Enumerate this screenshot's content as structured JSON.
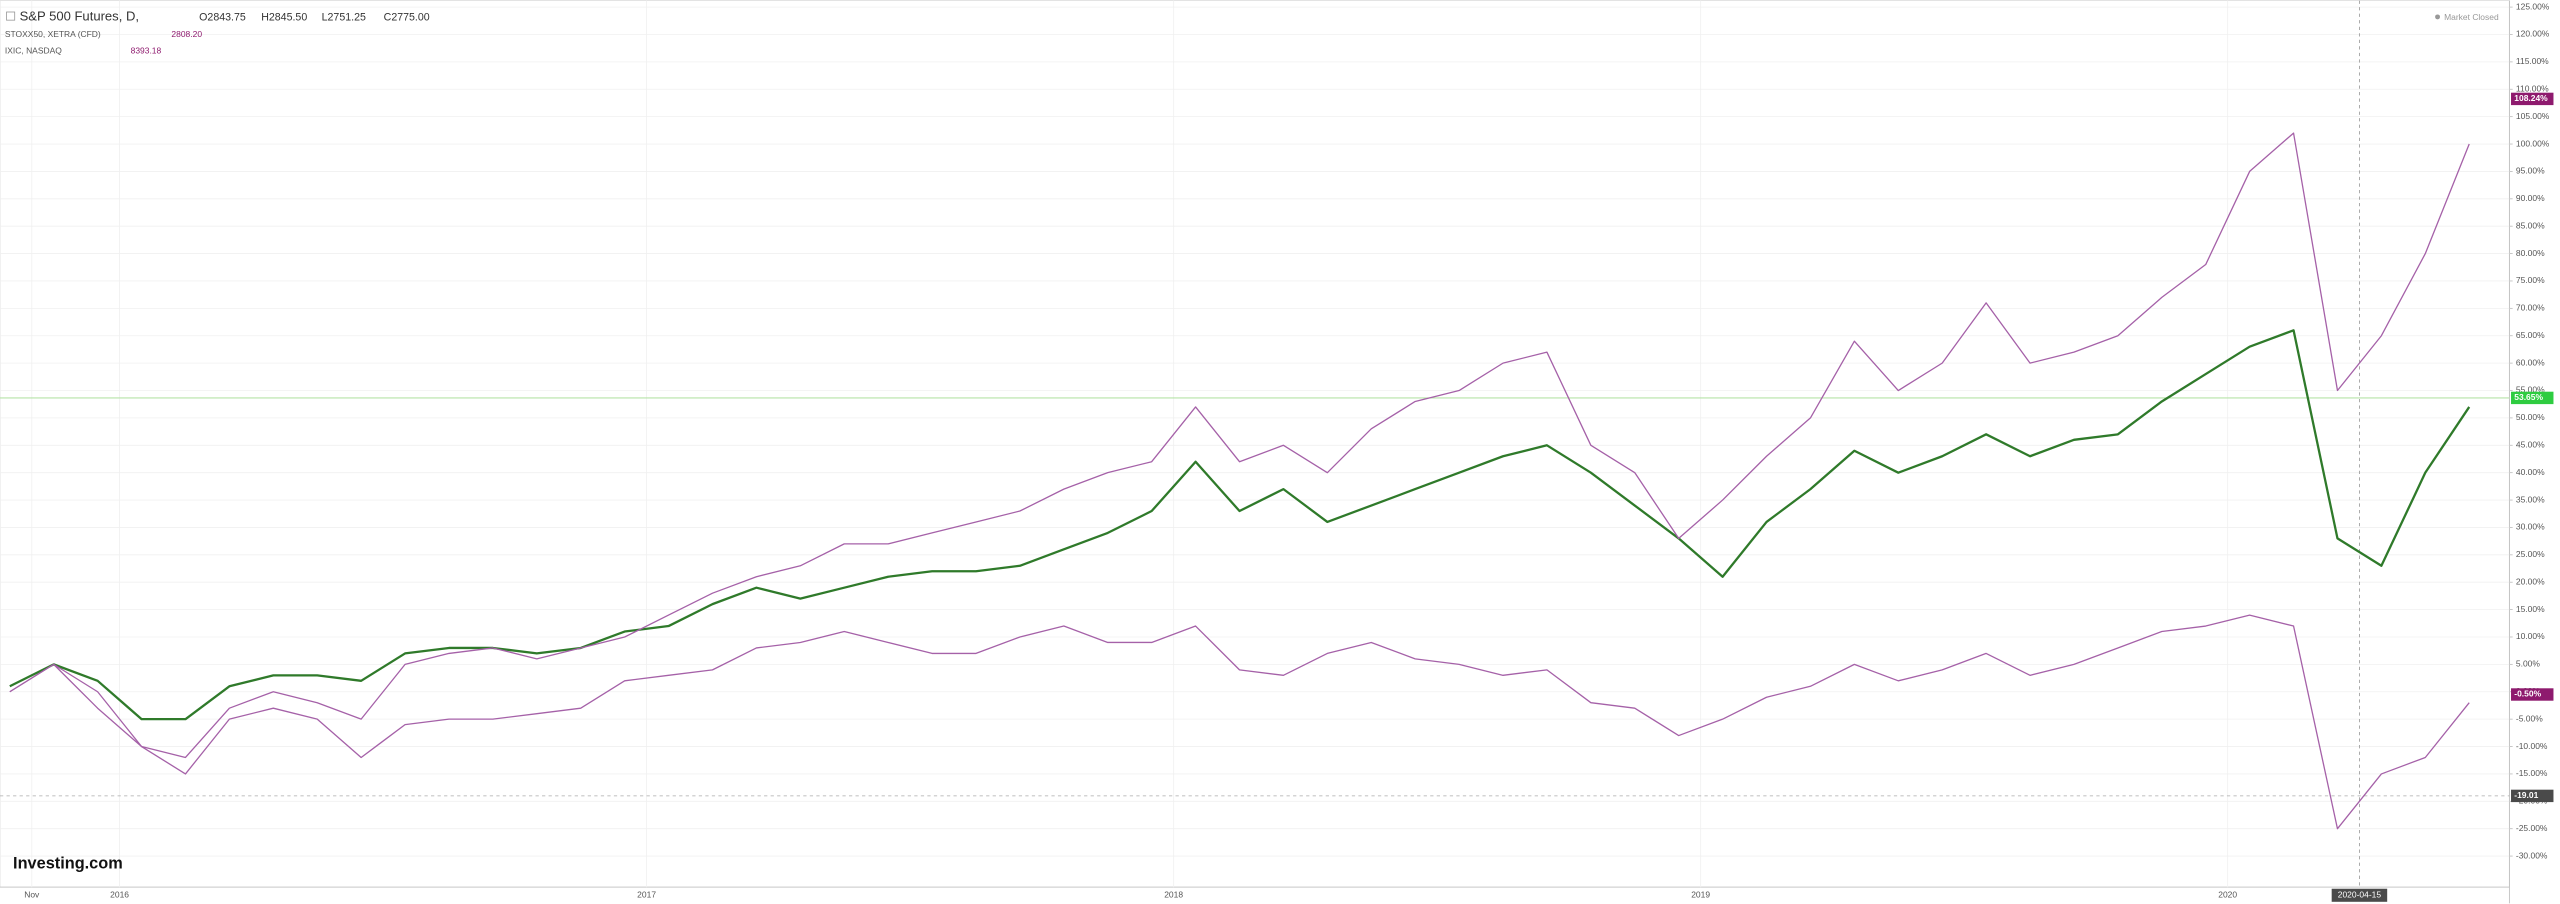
{
  "chart_data": {
    "type": "line",
    "header": {
      "symbol": "S&P 500 Futures, D,",
      "ohlc": [
        "O2843.75",
        "H2845.50",
        "L2751.25",
        "C2775.00"
      ]
    },
    "status": "Market Closed",
    "brand": "Investing.com",
    "categories": [
      null,
      "Nov",
      null,
      "2016",
      null,
      null,
      null,
      null,
      null,
      null,
      null,
      null,
      null,
      null,
      null,
      "2017",
      null,
      null,
      null,
      null,
      null,
      null,
      null,
      null,
      null,
      null,
      null,
      "2018",
      null,
      null,
      null,
      null,
      null,
      null,
      null,
      null,
      null,
      null,
      null,
      "2019",
      null,
      null,
      null,
      null,
      null,
      null,
      null,
      null,
      null,
      null,
      null,
      "2020",
      null,
      null,
      "2020-04-15",
      null,
      null
    ],
    "series": [
      {
        "name": "S&P 500 Futures, D,",
        "color": "#2f7a2a",
        "values": [
          1,
          5,
          2,
          -5,
          -5,
          1,
          3,
          3,
          2,
          7,
          8,
          8,
          7,
          8,
          11,
          12,
          16,
          19,
          17,
          19,
          21,
          22,
          22,
          23,
          26,
          29,
          33,
          42,
          33,
          37,
          31,
          34,
          37,
          40,
          43,
          45,
          40,
          34,
          28,
          21,
          31,
          37,
          44,
          40,
          43,
          47,
          43,
          46,
          47,
          53,
          58,
          63,
          66,
          28,
          23,
          40,
          52
        ]
      },
      {
        "name": "STOXX50, XETRA (CFD)",
        "color": "#a561a8",
        "legend_value": "2808.20",
        "values": [
          0,
          5,
          -3,
          -10,
          -15,
          -5,
          -3,
          -5,
          -12,
          -6,
          -5,
          -5,
          -4,
          -3,
          2,
          3,
          4,
          8,
          9,
          11,
          9,
          7,
          7,
          10,
          12,
          9,
          9,
          12,
          4,
          3,
          7,
          9,
          6,
          5,
          3,
          4,
          -2,
          -3,
          -8,
          -5,
          -1,
          1,
          5,
          2,
          4,
          7,
          3,
          5,
          8,
          11,
          12,
          14,
          12,
          -25,
          -15,
          -12,
          -2
        ]
      },
      {
        "name": "IXIC, NASDAQ",
        "color": "#a561a8",
        "legend_value": "8393.18",
        "values": [
          0,
          5,
          0,
          -10,
          -12,
          -3,
          0,
          -2,
          -5,
          5,
          7,
          8,
          6,
          8,
          10,
          14,
          18,
          21,
          23,
          27,
          27,
          29,
          31,
          33,
          37,
          40,
          42,
          52,
          42,
          45,
          40,
          48,
          53,
          55,
          60,
          62,
          45,
          40,
          28,
          35,
          43,
          50,
          64,
          55,
          60,
          71,
          60,
          62,
          65,
          72,
          78,
          95,
          102,
          55,
          65,
          80,
          100
        ]
      }
    ],
    "markers": [
      {
        "value": 108.24,
        "label": "108.24%",
        "color": "#8e1a6e"
      },
      {
        "value": 53.65,
        "label": "53.65%",
        "color": "#2ecc40",
        "line": true
      },
      {
        "value": -0.5,
        "label": "-0.50%",
        "color": "#8e1a6e"
      },
      {
        "value": -19.01,
        "label": "-19.01",
        "color": "#4a4a4a",
        "dashed": true
      }
    ],
    "ylim": [
      -30,
      125
    ],
    "yticks": [
      {
        "value": 125,
        "label": "125.00%"
      },
      {
        "value": 120,
        "label": "120.00%"
      },
      {
        "value": 115,
        "label": "115.00%"
      },
      {
        "value": 110,
        "label": "110.00%"
      },
      {
        "value": 105,
        "label": "105.00%"
      },
      {
        "value": 100,
        "label": "100.00%"
      },
      {
        "value": 95,
        "label": "95.00%"
      },
      {
        "value": 90,
        "label": "90.00%"
      },
      {
        "value": 85,
        "label": "85.00%"
      },
      {
        "value": 80,
        "label": "80.00%"
      },
      {
        "value": 75,
        "label": "75.00%"
      },
      {
        "value": 70,
        "label": "70.00%"
      },
      {
        "value": 65,
        "label": "65.00%"
      },
      {
        "value": 60,
        "label": "60.00%"
      },
      {
        "value": 55,
        "label": "55.00%"
      },
      {
        "value": 50,
        "label": "50.00%"
      },
      {
        "value": 45,
        "label": "45.00%"
      },
      {
        "value": 40,
        "label": "40.00%"
      },
      {
        "value": 35,
        "label": "35.00%"
      },
      {
        "value": 30,
        "label": "30.00%"
      },
      {
        "value": 25,
        "label": "25.00%"
      },
      {
        "value": 20,
        "label": "20.00%"
      },
      {
        "value": 15,
        "label": "15.00%"
      },
      {
        "value": 10,
        "label": "10.00%"
      },
      {
        "value": 5,
        "label": "5.00%"
      },
      {
        "value": 0,
        "label": "0.00%"
      },
      {
        "value": -5,
        "label": "-5.00%"
      },
      {
        "value": -10,
        "label": "-10.00%"
      },
      {
        "value": -15,
        "label": "-15.00%"
      },
      {
        "value": -20,
        "label": "-20.00%"
      },
      {
        "value": -25,
        "label": "-25.00%"
      },
      {
        "value": -30,
        "label": "-30.00%"
      }
    ],
    "grid": true
  }
}
